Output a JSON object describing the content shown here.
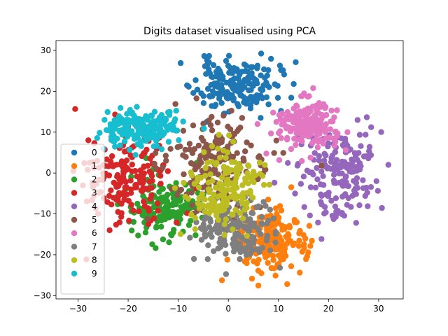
{
  "chart_data": {
    "type": "scatter",
    "title": "Digits dataset visualised using PCA",
    "xlabel": "",
    "ylabel": "",
    "xlim": [
      -34.4,
      34.9
    ],
    "ylim": [
      -30.8,
      32.4
    ],
    "x_ticks": [
      -30,
      -20,
      -10,
      0,
      10,
      20,
      30
    ],
    "y_ticks": [
      -30,
      -20,
      -10,
      0,
      10,
      20,
      30
    ],
    "grid": false,
    "legend_position": "center-left",
    "series": [
      {
        "name": "0",
        "color": "#1f77b4",
        "center": [
          1.5,
          21.5
        ],
        "spread": [
          5.5,
          4.2
        ],
        "n": 178,
        "seed": 11
      },
      {
        "name": "1",
        "color": "#ff7f0e",
        "center": [
          8.0,
          -17.0
        ],
        "spread": [
          4.8,
          5.5
        ],
        "n": 182,
        "seed": 23
      },
      {
        "name": "2",
        "color": "#2ca02c",
        "center": [
          -12.0,
          -8.0
        ],
        "spread": [
          5.0,
          5.0
        ],
        "n": 177,
        "seed": 37
      },
      {
        "name": "3",
        "color": "#d62728",
        "center": [
          -20.0,
          -1.0
        ],
        "spread": [
          5.5,
          8.0
        ],
        "n": 183,
        "seed": 41
      },
      {
        "name": "4",
        "color": "#9467bd",
        "center": [
          22.0,
          0.0
        ],
        "spread": [
          5.0,
          7.5
        ],
        "n": 181,
        "seed": 53
      },
      {
        "name": "5",
        "color": "#8c564b",
        "center": [
          -3.0,
          3.0
        ],
        "spread": [
          7.0,
          8.0
        ],
        "n": 182,
        "seed": 67
      },
      {
        "name": "6",
        "color": "#e377c2",
        "center": [
          16.0,
          12.0
        ],
        "spread": [
          4.5,
          4.0
        ],
        "n": 181,
        "seed": 71
      },
      {
        "name": "7",
        "color": "#7f7f7f",
        "center": [
          1.0,
          -14.0
        ],
        "spread": [
          5.5,
          5.0
        ],
        "n": 179,
        "seed": 83
      },
      {
        "name": "8",
        "color": "#bcbd22",
        "center": [
          -1.0,
          -4.0
        ],
        "spread": [
          5.0,
          6.5
        ],
        "n": 174,
        "seed": 97
      },
      {
        "name": "9",
        "color": "#17becf",
        "center": [
          -17.0,
          11.0
        ],
        "spread": [
          5.0,
          3.0
        ],
        "n": 180,
        "seed": 101
      }
    ]
  }
}
